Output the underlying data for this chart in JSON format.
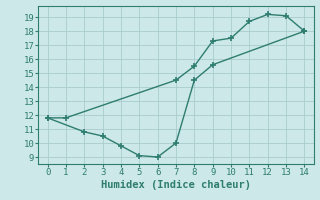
{
  "line1_x": [
    0,
    1,
    7,
    8,
    9,
    10,
    11,
    12,
    13,
    14
  ],
  "line1_y": [
    11.8,
    11.8,
    14.5,
    15.5,
    17.3,
    17.5,
    18.7,
    19.2,
    19.1,
    18.0
  ],
  "line2_x": [
    0,
    2,
    3,
    4,
    5,
    6,
    7,
    8,
    9,
    14
  ],
  "line2_y": [
    11.8,
    10.8,
    10.5,
    9.8,
    9.1,
    9.0,
    10.0,
    14.5,
    15.6,
    18.0
  ],
  "color": "#2e7d6e",
  "bg_color": "#cce8e8",
  "grid_color": "#aacccc",
  "xlabel": "Humidex (Indice chaleur)",
  "xlim": [
    -0.5,
    14.5
  ],
  "ylim": [
    8.5,
    19.8
  ],
  "xticks": [
    0,
    1,
    2,
    3,
    4,
    5,
    6,
    7,
    8,
    9,
    10,
    11,
    12,
    13,
    14
  ],
  "yticks": [
    9,
    10,
    11,
    12,
    13,
    14,
    15,
    16,
    17,
    18,
    19
  ],
  "marker": "+",
  "markersize": 4,
  "linewidth": 1.0,
  "tick_fontsize": 6.5,
  "xlabel_fontsize": 7.5
}
